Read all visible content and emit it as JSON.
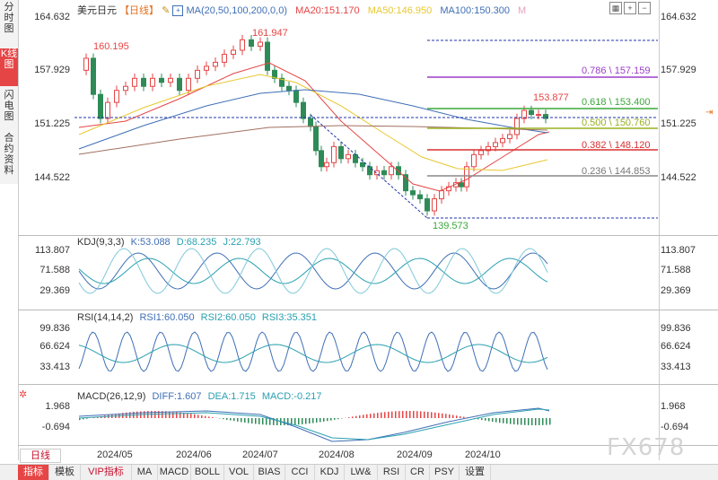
{
  "left_tabs": [
    {
      "label": "分时图",
      "active": false
    },
    {
      "label": "K线图",
      "active": true
    },
    {
      "label": "闪电图",
      "active": false
    },
    {
      "label": "合约资料",
      "active": false
    }
  ],
  "header": {
    "symbol": "美元日元",
    "period": "【日线】",
    "ma_label": "MA(20,50,100,200,0,0)",
    "ma20": "MA20:151.170",
    "ma50": "MA50:146.950",
    "ma100": "MA100:150.300",
    "m_mark": "M",
    "colors": {
      "ma20": "#e64545",
      "ma50": "#e8c830",
      "ma100": "#3f6fb5",
      "ma200": "#a07060"
    }
  },
  "price_axis": [
    "164.632",
    "157.929",
    "151.225",
    "144.522"
  ],
  "price_annotations": {
    "high1": "160.195",
    "high2": "161.947",
    "low": "139.573",
    "recent_high": "153.877"
  },
  "fib_levels": [
    {
      "label": "0.786 \\ 157.159",
      "color": "#9b3fc7"
    },
    {
      "label": "0.618 \\ 153.400",
      "color": "#3aa83a"
    },
    {
      "label": "0.500 \\ 150.760",
      "color": "#b8d23a"
    },
    {
      "label": "0.382 \\ 148.120",
      "color": "#d93030"
    },
    {
      "label": "0.236 \\ 144.853",
      "color": "#888888"
    }
  ],
  "kdj": {
    "title": "KDJ(9,3,3)",
    "k": "K:53.088",
    "d": "D:68.235",
    "j": "J:22.793",
    "axis": [
      "113.807",
      "71.588",
      "29.369"
    ]
  },
  "rsi": {
    "title": "RSI(14,14,2)",
    "rsi1": "RSI1:60.050",
    "rsi2": "RSI2:60.050",
    "rsi3": "RSI3:35.351",
    "axis": [
      "99.836",
      "66.624",
      "33.413"
    ]
  },
  "macd": {
    "title": "MACD(26,12,9)",
    "diff": "DIFF:1.607",
    "dea": "DEA:1.715",
    "macd": "MACD:-0.217",
    "axis": [
      "1.968",
      "-0.694"
    ]
  },
  "dates": [
    "2024/05",
    "2024/06",
    "2024/07",
    "2024/08",
    "2024/09",
    "2024/10"
  ],
  "period_selector": "日线",
  "bottom_tabs": [
    {
      "label": "指标",
      "active": true
    },
    {
      "label": "模板"
    },
    {
      "label": "VIP指标",
      "vip": true
    },
    {
      "label": "MA"
    },
    {
      "label": "MACD"
    },
    {
      "label": "BOLL"
    },
    {
      "label": "VOL"
    },
    {
      "label": "BIAS"
    },
    {
      "label": "CCI"
    },
    {
      "label": "KDJ"
    },
    {
      "label": "LW&"
    },
    {
      "label": "RSI"
    },
    {
      "label": "CR"
    },
    {
      "label": "PSY"
    },
    {
      "label": "设置"
    }
  ],
  "watermark": "FX678",
  "icons": [
    "grid-icon",
    "zoom-in-icon",
    "zoom-out-icon",
    "lock-icon",
    "crosshair-icon"
  ]
}
